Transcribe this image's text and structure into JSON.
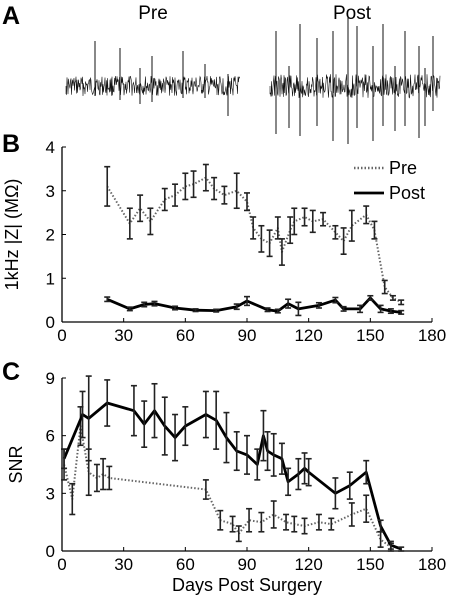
{
  "panels": {
    "a": {
      "letter": "A",
      "pre_label": "Pre",
      "post_label": "Post"
    },
    "b": {
      "letter": "B"
    },
    "c": {
      "letter": "C"
    }
  },
  "chart_data": [
    {
      "type": "line",
      "panel": "B",
      "xlabel": "",
      "ylabel": "1kHz |Z| (MΩ)",
      "xlim": [
        0,
        180
      ],
      "ylim": [
        0,
        4
      ],
      "xticks": [
        "0",
        "30",
        "60",
        "90",
        "120",
        "150",
        "180"
      ],
      "yticks": [
        "0",
        "1",
        "2",
        "3",
        "4"
      ],
      "legend_position": "top-right",
      "series": [
        {
          "name": "Pre",
          "style": "dotted",
          "color": "#666666",
          "x": [
            22,
            33,
            38,
            43,
            50,
            55,
            60,
            64,
            70,
            74,
            79,
            85,
            90,
            93,
            97,
            101,
            105,
            107,
            111,
            113,
            118,
            122,
            127,
            133,
            137,
            141,
            148,
            152,
            157,
            161,
            165
          ],
          "y": [
            3.1,
            2.25,
            2.6,
            2.3,
            2.8,
            2.9,
            3.1,
            3.15,
            3.3,
            3.05,
            2.9,
            3.0,
            2.75,
            2.15,
            1.9,
            1.8,
            2.15,
            1.6,
            2.1,
            2.3,
            2.4,
            2.3,
            2.35,
            2.05,
            1.85,
            2.2,
            2.45,
            2.1,
            0.8,
            0.55,
            0.45
          ],
          "err": [
            0.45,
            0.35,
            0.3,
            0.3,
            0.25,
            0.25,
            0.3,
            0.3,
            0.3,
            0.25,
            0.2,
            0.4,
            0.2,
            0.25,
            0.3,
            0.3,
            0.25,
            0.3,
            0.3,
            0.3,
            0.2,
            0.25,
            0.15,
            0.15,
            0.3,
            0.35,
            0.2,
            0.2,
            0.15,
            0.05,
            0.05
          ]
        },
        {
          "name": "Post",
          "style": "solid",
          "color": "#000000",
          "x": [
            22,
            33,
            40,
            45,
            55,
            65,
            75,
            85,
            90,
            100,
            105,
            110,
            115,
            125,
            133,
            137,
            145,
            150,
            155,
            160,
            165
          ],
          "y": [
            0.52,
            0.3,
            0.4,
            0.42,
            0.32,
            0.27,
            0.26,
            0.35,
            0.48,
            0.28,
            0.25,
            0.42,
            0.3,
            0.38,
            0.5,
            0.3,
            0.3,
            0.55,
            0.3,
            0.25,
            0.22
          ],
          "err": [
            0.05,
            0.04,
            0.05,
            0.05,
            0.04,
            0.03,
            0.03,
            0.06,
            0.1,
            0.04,
            0.04,
            0.1,
            0.15,
            0.06,
            0.06,
            0.05,
            0.08,
            0.05,
            0.08,
            0.05,
            0.04
          ]
        }
      ]
    },
    {
      "type": "line",
      "panel": "C",
      "xlabel": "Days Post Surgery",
      "ylabel": "SNR",
      "xlim": [
        0,
        180
      ],
      "ylim": [
        0,
        9
      ],
      "xticks": [
        "0",
        "30",
        "60",
        "90",
        "120",
        "150",
        "180"
      ],
      "yticks": [
        "0",
        "3",
        "6",
        "9"
      ],
      "series": [
        {
          "name": "Pre",
          "style": "dotted",
          "color": "#666666",
          "x": [
            1,
            5,
            9,
            13,
            17,
            20,
            23,
            70,
            77,
            83,
            86,
            91,
            97,
            103,
            109,
            113,
            118,
            125,
            131,
            141,
            148,
            155,
            160
          ],
          "y": [
            4.5,
            2.7,
            6.5,
            4.1,
            3.8,
            4.0,
            3.8,
            3.2,
            1.6,
            1.4,
            0.9,
            1.6,
            1.5,
            1.9,
            1.5,
            1.4,
            1.3,
            1.5,
            1.4,
            1.9,
            2.2,
            0.6,
            0.2
          ],
          "err": [
            0.8,
            0.8,
            1.0,
            1.2,
            0.7,
            0.8,
            0.6,
            0.5,
            0.5,
            0.4,
            0.4,
            0.6,
            0.5,
            0.7,
            0.4,
            0.4,
            0.4,
            0.4,
            0.3,
            0.6,
            0.7,
            0.4,
            0.2
          ]
        },
        {
          "name": "Post",
          "style": "solid",
          "color": "#000000",
          "x": [
            1,
            10,
            13,
            22,
            35,
            40,
            45,
            50,
            55,
            60,
            70,
            75,
            80,
            85,
            90,
            95,
            98,
            100,
            103,
            107,
            110,
            115,
            118,
            120,
            133,
            140,
            148,
            155,
            160,
            165
          ],
          "y": [
            4.8,
            7.1,
            6.9,
            7.7,
            7.3,
            6.6,
            7.3,
            6.5,
            5.9,
            6.5,
            7.1,
            6.8,
            5.9,
            5.2,
            5.0,
            4.5,
            6.0,
            5.2,
            5.0,
            4.8,
            3.6,
            4.0,
            4.3,
            4.1,
            3.0,
            3.4,
            4.1,
            1.3,
            0.3,
            0.1
          ],
          "err": [
            0.5,
            1.2,
            2.2,
            1.2,
            1.3,
            1.2,
            1.4,
            1.5,
            1.2,
            1.0,
            1.2,
            1.5,
            1.3,
            1.0,
            1.0,
            0.8,
            1.3,
            1.0,
            1.1,
            0.8,
            0.7,
            0.8,
            0.8,
            0.7,
            0.8,
            0.7,
            0.6,
            0.3,
            0.2,
            0.1
          ]
        }
      ]
    }
  ]
}
